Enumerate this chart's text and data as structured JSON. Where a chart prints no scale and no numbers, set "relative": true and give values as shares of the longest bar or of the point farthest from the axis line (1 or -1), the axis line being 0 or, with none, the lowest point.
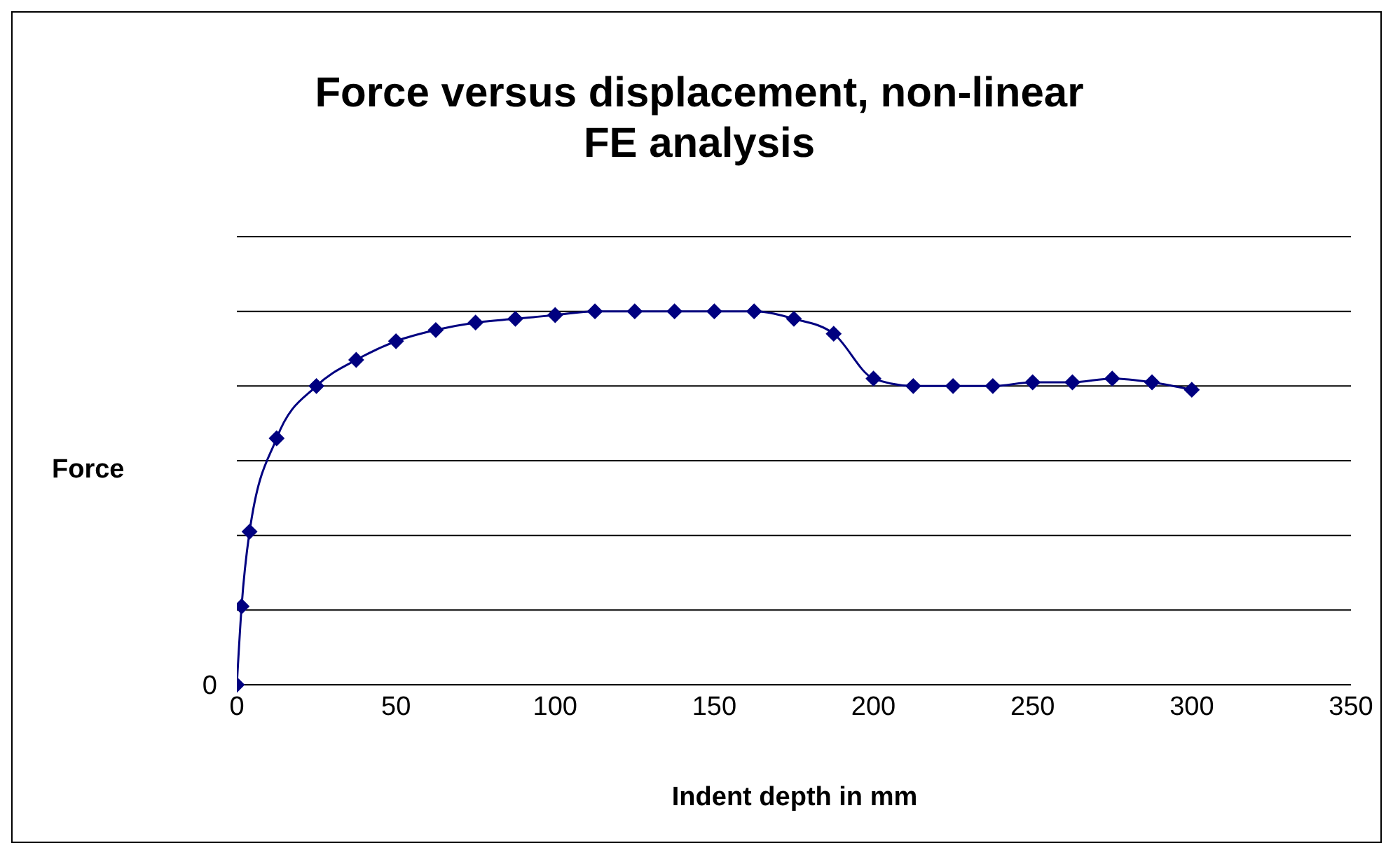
{
  "chart_data": {
    "type": "line",
    "title": "Force versus displacement, non-linear FE analysis",
    "xlabel": "Indent depth in mm",
    "ylabel": "Force",
    "relative": true,
    "grid": "y",
    "marker": "diamond",
    "line_style": "solid",
    "xlim": [
      0,
      350
    ],
    "xticks": [
      0,
      50,
      100,
      150,
      200,
      250,
      300,
      350
    ],
    "x": [
      0,
      1.5,
      4,
      12.5,
      25,
      37.5,
      50,
      62.5,
      75,
      87.5,
      100,
      112.5,
      125,
      137.5,
      150,
      162.5,
      175,
      187.5,
      200,
      212.5,
      225,
      237.5,
      250,
      262.5,
      275,
      287.5,
      300
    ],
    "series": [
      {
        "color": "#000080",
        "values": [
          0,
          0.21,
          0.41,
          0.66,
          0.8,
          0.87,
          0.92,
          0.95,
          0.97,
          0.98,
          0.99,
          1,
          1,
          1,
          1,
          1,
          0.98,
          0.94,
          0.82,
          0.8,
          0.8,
          0.8,
          0.81,
          0.81,
          0.82,
          0.81,
          0.79
        ]
      }
    ],
    "annotations": [
      {
        "text": "0",
        "x": 0,
        "y": 0
      }
    ]
  }
}
